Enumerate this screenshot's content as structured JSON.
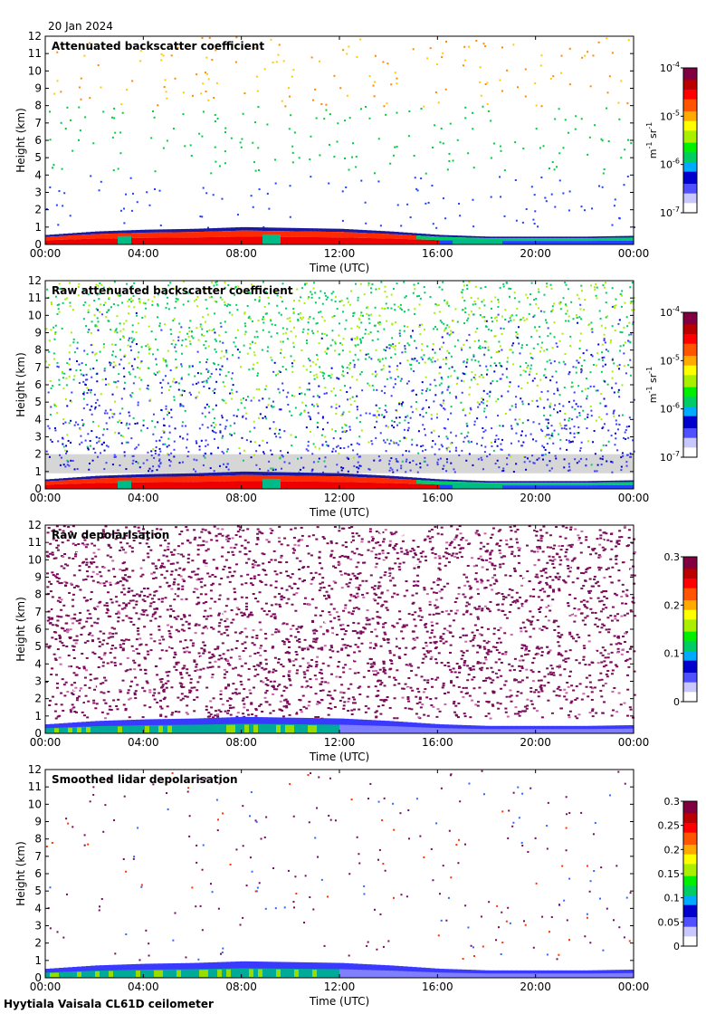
{
  "date": "20 Jan 2024",
  "footer": "Hyytiala Vaisala CL61D ceilometer",
  "chart_data": [
    {
      "type": "heatmap",
      "title": "Attenuated backscatter coefficient",
      "xlabel": "Time (UTC)",
      "ylabel": "Height (km)",
      "x_ticks": [
        "00:00",
        "04:00",
        "08:00",
        "12:00",
        "16:00",
        "20:00",
        "00:00"
      ],
      "y_ticks": [
        "0",
        "1",
        "2",
        "3",
        "4",
        "5",
        "6",
        "7",
        "8",
        "9",
        "10",
        "11",
        "12"
      ],
      "xlim_hours": [
        0,
        24
      ],
      "ylim_km": [
        0,
        12
      ],
      "colorbar": {
        "scale": "log",
        "ticks": [
          {
            "base": "10",
            "exp": "-4"
          },
          {
            "base": "10",
            "exp": "-5"
          },
          {
            "base": "10",
            "exp": "-6"
          },
          {
            "base": "10",
            "exp": "-7"
          }
        ],
        "unit_parts": {
          "a": "m",
          "a_exp": "-1",
          "b": " sr",
          "b_exp": "-1"
        }
      },
      "boundary_layer_top_km": [
        {
          "t": 0,
          "h": 0.55
        },
        {
          "t": 2,
          "h": 0.75
        },
        {
          "t": 4,
          "h": 0.85
        },
        {
          "t": 6,
          "h": 0.9
        },
        {
          "t": 8,
          "h": 1.0
        },
        {
          "t": 10,
          "h": 0.95
        },
        {
          "t": 12,
          "h": 0.9
        },
        {
          "t": 14,
          "h": 0.75
        },
        {
          "t": 16,
          "h": 0.55
        },
        {
          "t": 18,
          "h": 0.45
        },
        {
          "t": 20,
          "h": 0.45
        },
        {
          "t": 22,
          "h": 0.45
        },
        {
          "t": 24,
          "h": 0.5
        }
      ],
      "grid": false
    },
    {
      "type": "heatmap",
      "title": "Raw attenuated backscatter coefficient",
      "xlabel": "Time (UTC)",
      "ylabel": "Height (km)",
      "x_ticks": [
        "00:00",
        "04:00",
        "08:00",
        "12:00",
        "16:00",
        "20:00",
        "00:00"
      ],
      "y_ticks": [
        "0",
        "1",
        "2",
        "3",
        "4",
        "5",
        "6",
        "7",
        "8",
        "9",
        "10",
        "11",
        "12"
      ],
      "xlim_hours": [
        0,
        24
      ],
      "ylim_km": [
        0,
        12
      ],
      "colorbar": {
        "scale": "log",
        "ticks": [
          {
            "base": "10",
            "exp": "-4"
          },
          {
            "base": "10",
            "exp": "-5"
          },
          {
            "base": "10",
            "exp": "-6"
          },
          {
            "base": "10",
            "exp": "-7"
          }
        ],
        "unit_parts": {
          "a": "m",
          "a_exp": "-1",
          "b": " sr",
          "b_exp": "-1"
        }
      },
      "grid": false
    },
    {
      "type": "heatmap",
      "title": "Raw depolarisation",
      "xlabel": "Time (UTC)",
      "ylabel": "Height (km)",
      "x_ticks": [
        "00:00",
        "04:00",
        "08:00",
        "12:00",
        "16:00",
        "20:00",
        "00:00"
      ],
      "y_ticks": [
        "0",
        "1",
        "2",
        "3",
        "4",
        "5",
        "6",
        "7",
        "8",
        "9",
        "10",
        "11",
        "12"
      ],
      "xlim_hours": [
        0,
        24
      ],
      "ylim_km": [
        0,
        12
      ],
      "colorbar": {
        "scale": "linear",
        "range": [
          0,
          0.3
        ],
        "ticks": [
          "0.3",
          "0.2",
          "0.1",
          "0"
        ]
      },
      "grid": false
    },
    {
      "type": "heatmap",
      "title": "Smoothed lidar depolarisation",
      "xlabel": "Time (UTC)",
      "ylabel": "Height (km)",
      "x_ticks": [
        "00:00",
        "04:00",
        "08:00",
        "12:00",
        "16:00",
        "20:00",
        "00:00"
      ],
      "y_ticks": [
        "0",
        "1",
        "2",
        "3",
        "4",
        "5",
        "6",
        "7",
        "8",
        "9",
        "10",
        "11",
        "12"
      ],
      "xlim_hours": [
        0,
        24
      ],
      "ylim_km": [
        0,
        12
      ],
      "colorbar": {
        "scale": "linear",
        "range": [
          0,
          0.3
        ],
        "ticks": [
          "0.3",
          "0.25",
          "0.2",
          "0.15",
          "0.1",
          "0.05",
          "0"
        ]
      },
      "grid": false
    }
  ]
}
